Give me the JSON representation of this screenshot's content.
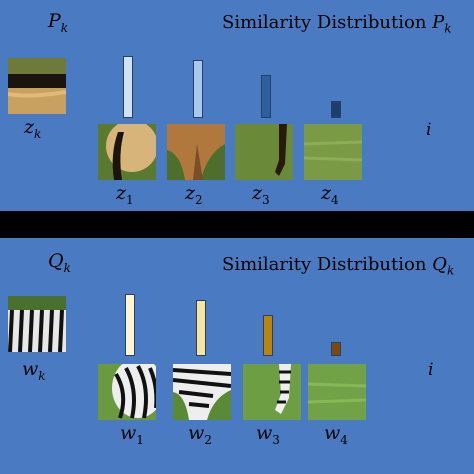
{
  "colors": {
    "panel_background": "#4a7ac2",
    "separator": "#000000",
    "top_bars": [
      "#cfe2f7",
      "#a8c8ee",
      "#2f5f9c",
      "#1c3d70"
    ],
    "bottom_bars": [
      "#fff6cf",
      "#f8e49a",
      "#b8860b",
      "#7a4a0e"
    ]
  },
  "top_panel": {
    "set_label": "P",
    "set_sub": "k",
    "title_text": "Similarity Distribution ",
    "title_symbol": "P",
    "title_sub": "k",
    "query_label": "z",
    "query_sub": "k",
    "axis_label": "i",
    "items": [
      {
        "label": "z",
        "sub": "1",
        "value": 1.0,
        "image": "horse-rear-with-tail"
      },
      {
        "label": "z",
        "sub": "2",
        "value": 0.93,
        "image": "horse-leg-brown"
      },
      {
        "label": "z",
        "sub": "3",
        "value": 0.7,
        "image": "horse-hoof-on-grass"
      },
      {
        "label": "z",
        "sub": "4",
        "value": 0.28,
        "image": "grass-patch"
      }
    ]
  },
  "bottom_panel": {
    "set_label": "Q",
    "set_sub": "k",
    "title_text": "Similarity Distribution ",
    "title_symbol": "Q",
    "title_sub": "k",
    "query_label": "w",
    "query_sub": "k",
    "axis_label": "i",
    "items": [
      {
        "label": "w",
        "sub": "1",
        "value": 1.0,
        "image": "zebra-rear-stripes"
      },
      {
        "label": "w",
        "sub": "2",
        "value": 0.9,
        "image": "zebra-leg-stripes"
      },
      {
        "label": "w",
        "sub": "3",
        "value": 0.66,
        "image": "zebra-hoof-on-grass"
      },
      {
        "label": "w",
        "sub": "4",
        "value": 0.22,
        "image": "grass-patch"
      }
    ]
  }
}
